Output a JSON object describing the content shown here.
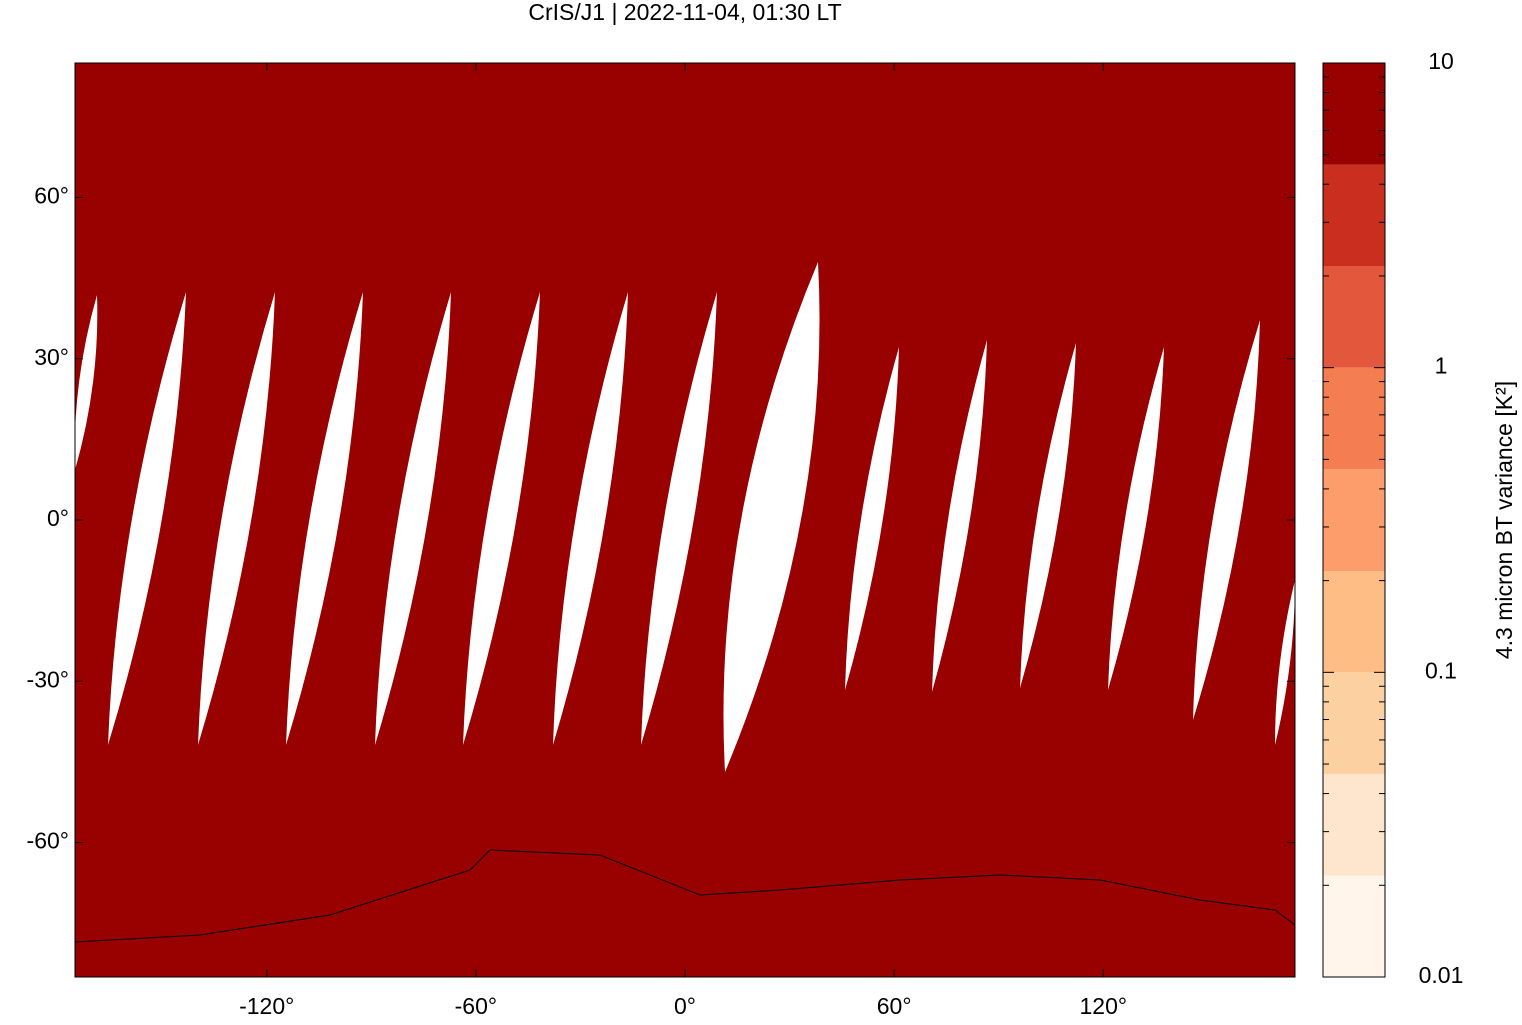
{
  "chart_data": {
    "type": "map",
    "title": "CrIS/J1 | 2022-11-04, 01:30 LT",
    "field_color": "#990000",
    "no_data_color": "#ffffff",
    "xlim": [
      -175,
      175
    ],
    "ylim": [
      -85,
      85
    ],
    "xticks": [
      {
        "value": -120,
        "label": "-120°"
      },
      {
        "value": -60,
        "label": "-60°"
      },
      {
        "value": 0,
        "label": "0°"
      },
      {
        "value": 60,
        "label": "60°"
      },
      {
        "value": 120,
        "label": "120°"
      }
    ],
    "yticks": [
      {
        "value": 60,
        "label": "60°"
      },
      {
        "value": 30,
        "label": "30°"
      },
      {
        "value": 0,
        "label": "0°"
      },
      {
        "value": -30,
        "label": "-30°"
      },
      {
        "value": -60,
        "label": "-60°"
      }
    ],
    "colorbar": {
      "label": "4.3 micron BT variance [K²]",
      "lim": [
        0.01,
        10
      ],
      "log": true,
      "ticks": [
        10,
        1,
        0.1,
        0.01
      ],
      "minor_ticks": [
        0.02,
        0.03,
        0.04,
        0.05,
        0.06,
        0.07,
        0.08,
        0.09,
        0.2,
        0.3,
        0.4,
        0.5,
        0.6,
        0.7,
        0.8,
        0.9,
        2,
        3,
        4,
        5,
        6,
        7,
        8,
        9
      ],
      "levels": [
        0.01,
        0.0215,
        0.0464,
        0.1,
        0.215,
        0.464,
        1,
        2.15,
        4.64,
        10
      ],
      "colors": [
        "#fff5eb",
        "#fee6ce",
        "#fdd0a2",
        "#fdbd85",
        "#fc9d6b",
        "#f57d52",
        "#e3573d",
        "#c92e1f",
        "#990000"
      ]
    }
  }
}
